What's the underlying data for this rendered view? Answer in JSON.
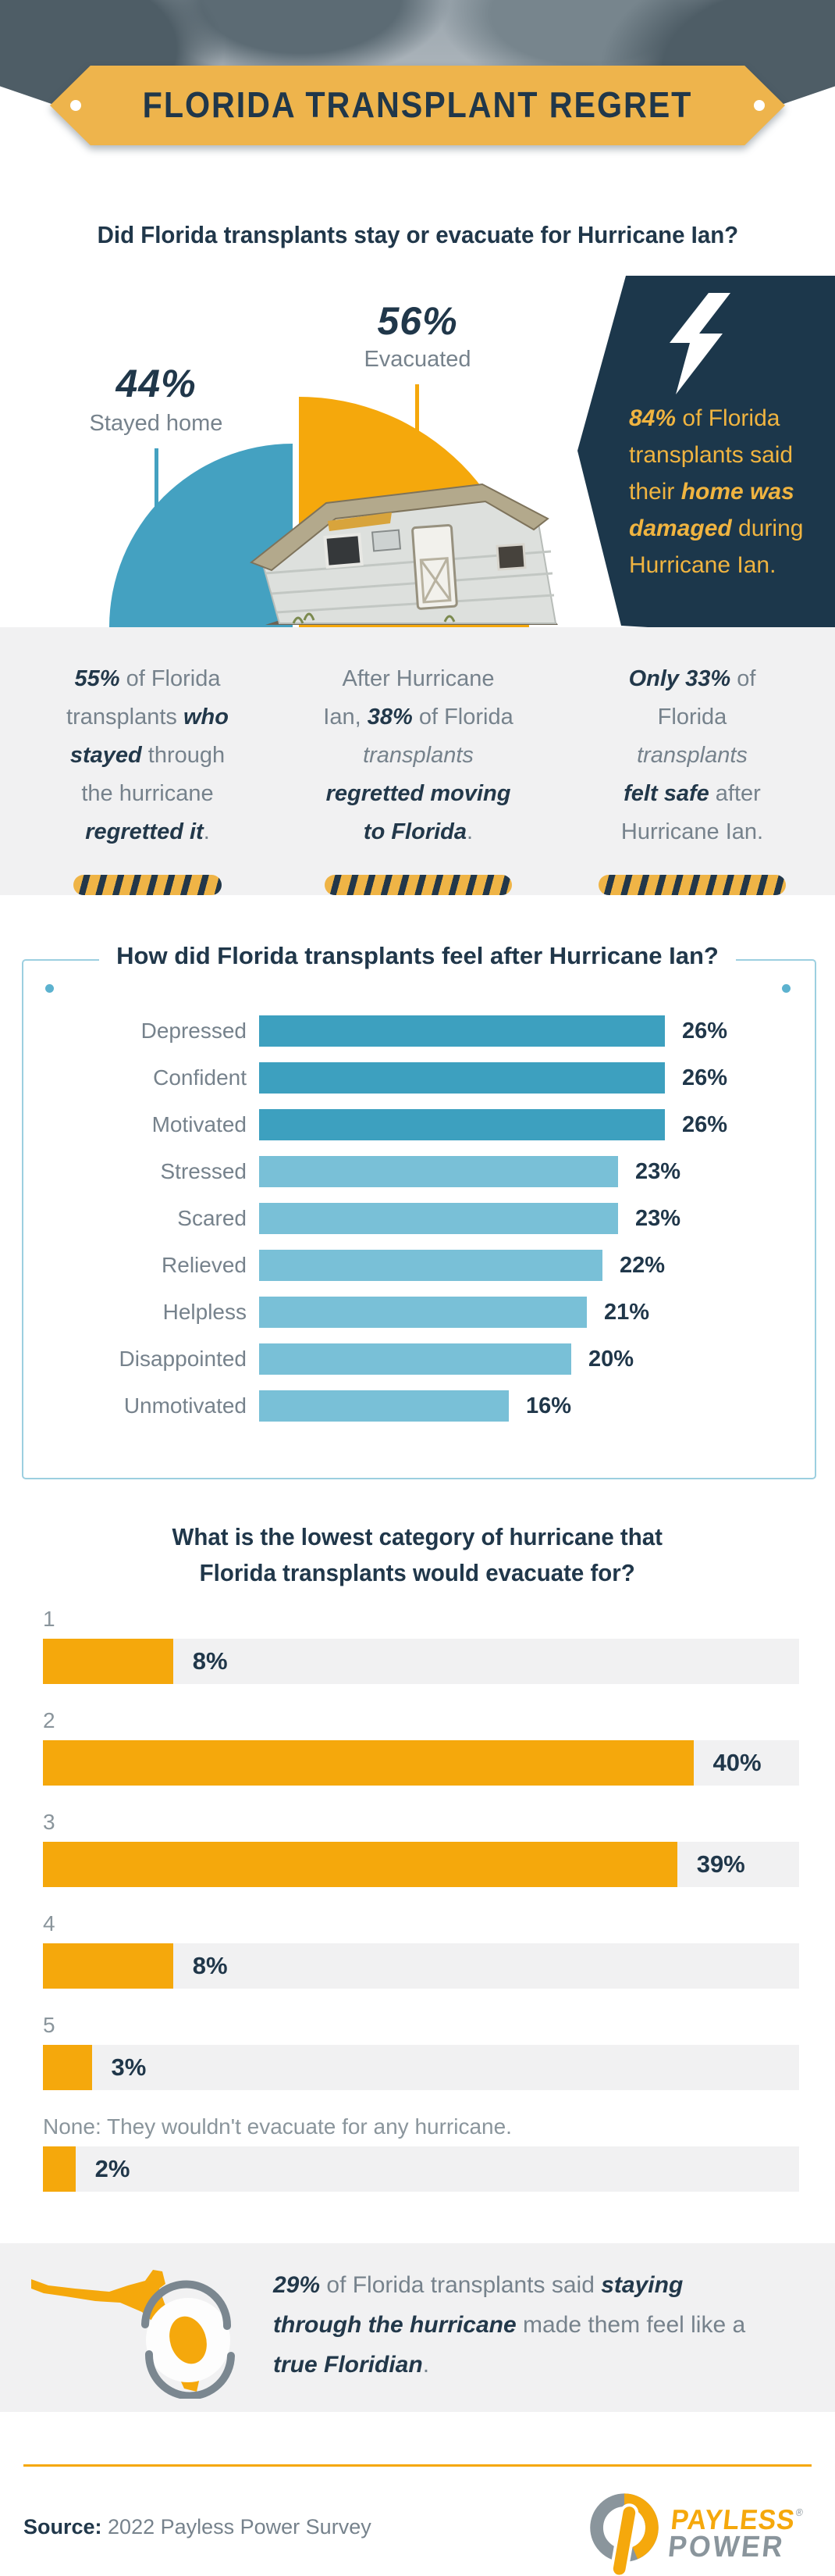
{
  "header": {
    "title": "FLORIDA TRANSPLANT REGRET"
  },
  "colors": {
    "accent_orange": "#f5a80c",
    "banner_gold": "#eeb44c",
    "navy_text": "#20374a",
    "navy_panel": "#1c374b",
    "teal_dark": "#3da0bf",
    "teal_light": "#79c0d7",
    "gray_text": "#76828c",
    "band_bg": "#f1f1f2",
    "box_border": "#9ccfe0",
    "panel_yellow_text": "#f0b440",
    "logo_gray": "#8a959c"
  },
  "chart_data": [
    {
      "type": "pie",
      "variant": "split half-circle, radius scaled by share",
      "title": "Did Florida transplants stay or evacuate for Hurricane Ian?",
      "slices": [
        {
          "label": "Stayed home",
          "value": 44,
          "pct_label": "44%",
          "color": "#44a1c1"
        },
        {
          "label": "Evacuated",
          "value": 56,
          "pct_label": "56%",
          "color": "#f5a80c"
        }
      ]
    },
    {
      "type": "bar",
      "orientation": "horizontal",
      "title": "How did Florida transplants feel after Hurricane Ian?",
      "categories": [
        "Depressed",
        "Confident",
        "Motivated",
        "Stressed",
        "Scared",
        "Relieved",
        "Helpless",
        "Disappointed",
        "Unmotivated"
      ],
      "values": [
        26,
        26,
        26,
        23,
        23,
        22,
        21,
        20,
        16
      ],
      "value_labels": [
        "26%",
        "26%",
        "26%",
        "23%",
        "23%",
        "22%",
        "21%",
        "20%",
        "16%"
      ],
      "unit": "%",
      "xlim": [
        0,
        26
      ],
      "bar_colors": [
        "#3da0bf",
        "#3da0bf",
        "#3da0bf",
        "#79c0d7",
        "#79c0d7",
        "#79c0d7",
        "#79c0d7",
        "#79c0d7",
        "#79c0d7"
      ],
      "legend": "none",
      "grid": "off"
    },
    {
      "type": "bar",
      "orientation": "horizontal",
      "title": "What is the lowest category of hurricane that Florida transplants would evacuate for?",
      "title_lines": [
        "What is the lowest category of hurricane that",
        "Florida transplants would evacuate for?"
      ],
      "categories": [
        "1",
        "2",
        "3",
        "4",
        "5",
        "None: They wouldn't evacuate for any hurricane."
      ],
      "values": [
        8,
        40,
        39,
        8,
        3,
        2
      ],
      "value_labels": [
        "8%",
        "40%",
        "39%",
        "8%",
        "3%",
        "2%"
      ],
      "unit": "%",
      "xlim": [
        0,
        46.5
      ],
      "track_max": 46.5,
      "bar_color": "#f5a80c",
      "track_color": "#f1f1f2",
      "grid": "off"
    }
  ],
  "navy_callout": {
    "lines": [
      [
        {
          "t": "84%",
          "s": "strong"
        },
        {
          "t": " of Florida"
        }
      ],
      [
        {
          "t": "transplants said"
        }
      ],
      [
        {
          "t": "their "
        },
        {
          "t": "home was",
          "s": "strong"
        }
      ],
      [
        {
          "t": "damaged",
          "s": "strong"
        },
        {
          "t": " during"
        }
      ],
      [
        {
          "t": "Hurricane Ian."
        }
      ]
    ]
  },
  "facts": [
    {
      "lines": [
        [
          {
            "t": "55%",
            "s": "strong"
          },
          {
            "t": " of Florida"
          }
        ],
        [
          {
            "t": "transplants "
          },
          {
            "t": "who",
            "s": "strong"
          }
        ],
        [
          {
            "t": "stayed",
            "s": "strong"
          },
          {
            "t": " through"
          }
        ],
        [
          {
            "t": "the hurricane"
          }
        ],
        [
          {
            "t": "regretted it",
            "s": "strong"
          },
          {
            "t": "."
          }
        ]
      ]
    },
    {
      "lines": [
        [
          {
            "t": "After Hurricane"
          }
        ],
        [
          {
            "t": "Ian, "
          },
          {
            "t": "38%",
            "s": "strong"
          },
          {
            "t": " of Florida"
          }
        ],
        [
          {
            "t": "transplants",
            "s": "italic"
          }
        ],
        [
          {
            "t": "regretted moving",
            "s": "strong"
          }
        ],
        [
          {
            "t": "to Florida",
            "s": "strong"
          },
          {
            "t": "."
          }
        ]
      ]
    },
    {
      "lines": [
        [
          {
            "t": "Only 33%",
            "s": "strong"
          },
          {
            "t": " of"
          }
        ],
        [
          {
            "t": "Florida"
          }
        ],
        [
          {
            "t": "transplants",
            "s": "italic"
          }
        ],
        [
          {
            "t": "felt safe",
            "s": "strong"
          },
          {
            "t": " after"
          }
        ],
        [
          {
            "t": "Hurricane Ian."
          }
        ]
      ]
    }
  ],
  "floridian": {
    "lines": [
      [
        {
          "t": "29%",
          "s": "strong"
        },
        {
          "t": " of Florida transplants said "
        },
        {
          "t": "staying",
          "s": "strong"
        }
      ],
      [
        {
          "t": "through the hurricane",
          "s": "strong"
        },
        {
          "t": " made them feel like a"
        }
      ],
      [
        {
          "t": "true Floridian",
          "s": "strong"
        },
        {
          "t": "."
        }
      ]
    ]
  },
  "footer": {
    "source_label": "Source:",
    "source_text": " 2022 Payless Power Survey",
    "logo_top": "PAYLESS",
    "logo_reg": "®",
    "logo_bottom": "POWER"
  }
}
